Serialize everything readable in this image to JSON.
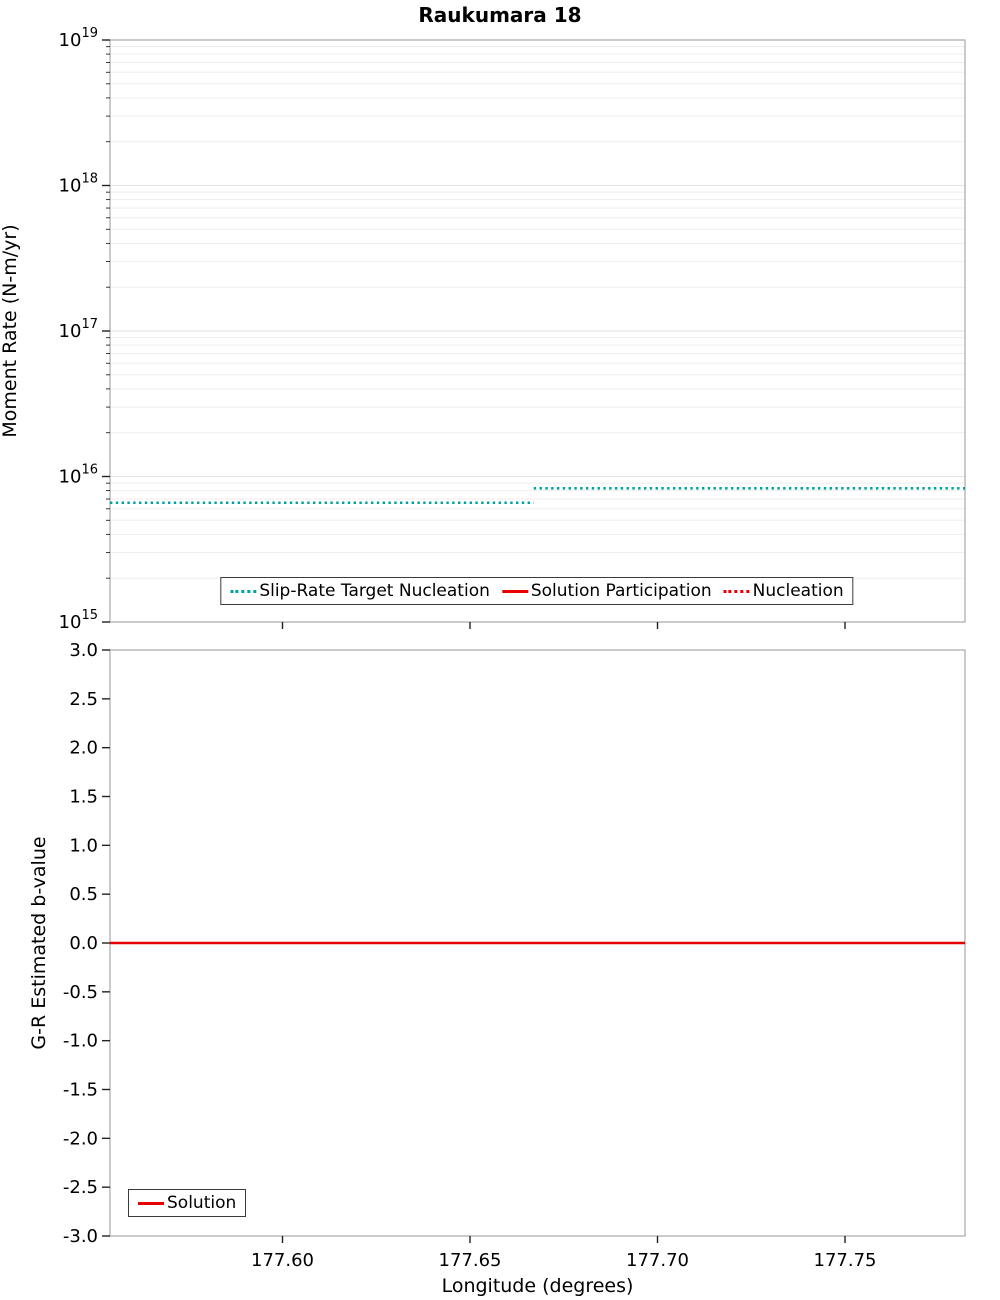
{
  "figure": {
    "title": "Raukumara 18"
  },
  "chart_data": [
    {
      "type": "line",
      "title": "Raukumara 18",
      "xlabel": "",
      "ylabel": "Moment Rate (N-m/yr)",
      "yscale": "log",
      "ylim": [
        1000000000000000.0,
        1e+19
      ],
      "xlim": [
        177.554,
        177.782
      ],
      "ytick_base": "10",
      "ytick_exponents": [
        15,
        16,
        17,
        18,
        19
      ],
      "xticks": [
        177.6,
        177.65,
        177.7,
        177.75
      ],
      "xtick_labels": [],
      "grid": "log-minor-horizontal",
      "legend": {
        "position": "bottom-center"
      },
      "series": [
        {
          "name": "Slip-Rate Target Nucleation",
          "color": "#00A2A2",
          "line_style": "dotted",
          "segments": [
            {
              "x": [
                177.554,
                177.667
              ],
              "y": [
                6600000000000000.0,
                6600000000000000.0
              ]
            },
            {
              "x": [
                177.667,
                177.782
              ],
              "y": [
                8300000000000000.0,
                8300000000000000.0
              ]
            }
          ]
        },
        {
          "name": "Solution Participation",
          "color": "#E60000",
          "line_style": "solid",
          "segments": []
        },
        {
          "name": "Nucleation",
          "color": "#E60000",
          "line_style": "dotted",
          "segments": []
        }
      ]
    },
    {
      "type": "line",
      "title": "",
      "xlabel": "Longitude (degrees)",
      "ylabel": "G-R Estimated b-value",
      "yscale": "linear",
      "ylim": [
        -3.0,
        3.0
      ],
      "xlim": [
        177.554,
        177.782
      ],
      "yticks": [
        3.0,
        2.5,
        2.0,
        1.5,
        1.0,
        0.5,
        0.0,
        -0.5,
        -1.0,
        -1.5,
        -2.0,
        -2.5,
        -3.0
      ],
      "ytick_labels": [
        "3.0",
        "2.5",
        "2.0",
        "1.5",
        "1.0",
        "0.5",
        "0.0",
        "-0.5",
        "-1.0",
        "-1.5",
        "-2.0",
        "-2.5",
        "-3.0"
      ],
      "xticks": [
        177.6,
        177.65,
        177.7,
        177.75
      ],
      "xtick_labels": [
        "177.60",
        "177.65",
        "177.70",
        "177.75"
      ],
      "grid": "none",
      "legend": {
        "position": "bottom-left"
      },
      "series": [
        {
          "name": "Solution",
          "color": "#E60000",
          "line_style": "solid",
          "segments": [
            {
              "x": [
                177.554,
                177.782
              ],
              "y": [
                0.0,
                0.0
              ]
            }
          ]
        }
      ]
    }
  ]
}
